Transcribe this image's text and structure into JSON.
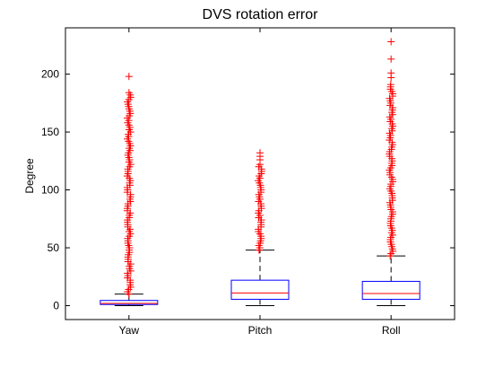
{
  "chart_data": {
    "type": "boxplot",
    "title": "DVS rotation error",
    "xlabel": "",
    "ylabel": "Degree",
    "ylim": [
      -12,
      240
    ],
    "yticks": [
      0,
      50,
      100,
      150,
      200
    ],
    "grid": false,
    "legend": "none",
    "categories": [
      "Yaw",
      "Pitch",
      "Roll"
    ],
    "boxes": [
      {
        "category": "Yaw",
        "min": 0,
        "q1": 1,
        "median": 2,
        "q3": 4.5,
        "whisker_high": 10,
        "outlier_range": [
          10,
          185
        ],
        "outlier_extremes": [
          198
        ]
      },
      {
        "category": "Pitch",
        "min": 0,
        "q1": 5.5,
        "median": 11,
        "q3": 22,
        "whisker_high": 48,
        "outlier_range": [
          48,
          122
        ],
        "outlier_extremes": [
          126,
          129,
          132
        ]
      },
      {
        "category": "Roll",
        "min": 0,
        "q1": 5.5,
        "median": 10.5,
        "q3": 21,
        "whisker_high": 43,
        "outlier_range": [
          43,
          192
        ],
        "outlier_extremes": [
          197,
          201,
          213,
          228
        ]
      }
    ],
    "colors": {
      "box": "#0000ff",
      "median": "#ff0000",
      "whisker": "#000000",
      "outlier": "#ff0000",
      "axes": "#000000"
    }
  }
}
